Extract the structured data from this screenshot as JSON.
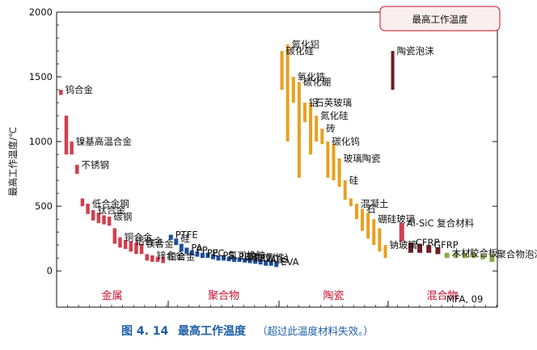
{
  "chart_data": {
    "type": "bar",
    "title": "最高工作温度",
    "ylabel": "最高工作温度/℃",
    "ylim": [
      -280,
      2000
    ],
    "yticks": [
      0,
      500,
      1000,
      1500,
      2000
    ],
    "attribution": "MFA, 09",
    "colors": {
      "metal": "#d04050",
      "polymer": "#1f4f9a",
      "ceramic": "#e8a020",
      "hybrid": "#6a1f24",
      "hybrid_light": "#8faa4a"
    },
    "categories": [
      "金属",
      "聚合物",
      "陶瓷",
      "混合物"
    ],
    "series": [
      {
        "group": "metal",
        "items": [
          {
            "label": "钨合金",
            "low": 1360,
            "high": 1400
          },
          {
            "label": "",
            "low": 900,
            "high": 1200
          },
          {
            "label": "镍基高温合金",
            "low": 900,
            "high": 1000
          },
          {
            "label": "不锈钢",
            "low": 750,
            "high": 820
          },
          {
            "label": "",
            "low": 500,
            "high": 560
          },
          {
            "label": "低合金钢",
            "low": 440,
            "high": 520
          },
          {
            "label": "钛合金",
            "low": 390,
            "high": 470
          },
          {
            "label": "",
            "low": 370,
            "high": 450
          },
          {
            "label": "",
            "low": 360,
            "high": 430
          },
          {
            "label": "碳钢",
            "low": 350,
            "high": 420
          },
          {
            "label": "",
            "low": 210,
            "high": 330
          },
          {
            "label": "铜合金",
            "low": 180,
            "high": 260
          },
          {
            "label": "",
            "low": 170,
            "high": 240
          },
          {
            "label": "铝合金",
            "low": 150,
            "high": 230
          },
          {
            "label": "",
            "low": 130,
            "high": 220
          },
          {
            "label": "镁合金",
            "low": 130,
            "high": 210
          },
          {
            "label": "",
            "low": 80,
            "high": 130
          },
          {
            "label": "锌合金",
            "low": 70,
            "high": 120
          },
          {
            "label": "",
            "low": 70,
            "high": 110
          },
          {
            "label": "铅合金",
            "low": 60,
            "high": 110
          }
        ]
      },
      {
        "group": "polymer",
        "items": [
          {
            "label": "PTFE",
            "low": 240,
            "high": 280
          },
          {
            "label": "硅",
            "low": 200,
            "high": 250
          },
          {
            "label": "",
            "low": 150,
            "high": 210
          },
          {
            "label": "PA",
            "low": 130,
            "high": 180
          },
          {
            "label": "PP",
            "low": 120,
            "high": 160
          },
          {
            "label": "",
            "low": 110,
            "high": 150
          },
          {
            "label": "PE",
            "low": 100,
            "high": 140
          },
          {
            "label": "PC",
            "low": 100,
            "high": 140
          },
          {
            "label": "",
            "low": 90,
            "high": 130
          },
          {
            "label": "PS",
            "low": 80,
            "high": 120
          },
          {
            "label": "氯丁橡胶",
            "low": 80,
            "high": 120
          },
          {
            "label": "",
            "low": 75,
            "high": 110
          },
          {
            "label": "PUR",
            "low": 70,
            "high": 110
          },
          {
            "label": "聚酯(刚性)",
            "low": 70,
            "high": 105
          },
          {
            "label": "",
            "low": 65,
            "high": 100
          },
          {
            "label": "PET",
            "low": 60,
            "high": 100
          },
          {
            "label": "PVC",
            "low": 55,
            "high": 95
          },
          {
            "label": "",
            "low": 50,
            "high": 90
          },
          {
            "label": "ABS",
            "low": 40,
            "high": 85
          },
          {
            "label": "",
            "low": 40,
            "high": 80
          },
          {
            "label": "EVA",
            "low": 30,
            "high": 70
          }
        ]
      },
      {
        "group": "ceramic",
        "items": [
          {
            "label": "碳化硅",
            "low": 1400,
            "high": 1700
          },
          {
            "label": "氮化铝",
            "low": 1000,
            "high": 1750
          },
          {
            "label": "氧化锆",
            "low": 1300,
            "high": 1500
          },
          {
            "label": "碳化硼",
            "low": 720,
            "high": 1460
          },
          {
            "label": "铝",
            "low": 1150,
            "high": 1300
          },
          {
            "label": "石英玻璃",
            "low": 900,
            "high": 1300
          },
          {
            "label": "氮化硅",
            "low": 1000,
            "high": 1200
          },
          {
            "label": "砖",
            "low": 980,
            "high": 1100
          },
          {
            "label": "碳化钨",
            "low": 720,
            "high": 1000
          },
          {
            "label": "",
            "low": 700,
            "high": 980
          },
          {
            "label": "玻璃陶瓷",
            "low": 650,
            "high": 870
          },
          {
            "label": "硅",
            "low": 550,
            "high": 700
          },
          {
            "label": "",
            "low": 500,
            "high": 560
          },
          {
            "label": "混凝土",
            "low": 400,
            "high": 520
          },
          {
            "label": "石",
            "low": 310,
            "high": 480
          },
          {
            "label": "",
            "low": 250,
            "high": 450
          },
          {
            "label": "硼硅玻璃",
            "low": 200,
            "high": 400
          },
          {
            "label": "",
            "low": 150,
            "high": 330
          },
          {
            "label": "钠玻璃",
            "low": 100,
            "high": 200
          }
        ]
      },
      {
        "group": "hybrid",
        "items": [
          {
            "label": "陶瓷泡沫",
            "low": 1400,
            "high": 1700
          },
          {
            "label": "Al-SiC 复合材料",
            "low": 230,
            "high": 370
          },
          {
            "label": "CFRP",
            "low": 140,
            "high": 220
          },
          {
            "label": "",
            "low": 140,
            "high": 210
          },
          {
            "label": "GFRP",
            "low": 140,
            "high": 200
          },
          {
            "label": "",
            "low": 130,
            "high": 180
          },
          {
            "label": "木材",
            "low": 100,
            "high": 140
          },
          {
            "label": "",
            "low": 100,
            "high": 140
          },
          {
            "label": "胶合板",
            "low": 100,
            "high": 140
          },
          {
            "label": "",
            "low": 100,
            "high": 140
          },
          {
            "label": "",
            "low": 90,
            "high": 130
          },
          {
            "label": "聚合物泡沫",
            "low": 70,
            "high": 130
          }
        ]
      }
    ]
  },
  "caption": {
    "number": "图 4. 14",
    "title": "最高工作温度",
    "note": "（超过此温度材料失效。）"
  }
}
